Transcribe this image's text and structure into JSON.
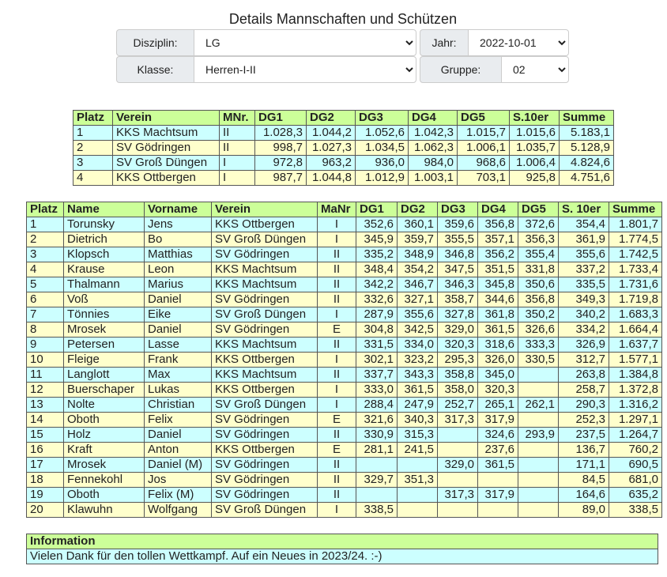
{
  "header": {
    "title": "Details Mannschaften und Schützen"
  },
  "filters": {
    "disziplin": {
      "label": "Disziplin:",
      "value": "LG"
    },
    "jahr": {
      "label": "Jahr:",
      "value": "2022-10-01"
    },
    "klasse": {
      "label": "Klasse:",
      "value": "Herren-I-II"
    },
    "gruppe": {
      "label": "Gruppe:",
      "value": "02"
    }
  },
  "team_table": {
    "columns": [
      "Platz",
      "Verein",
      "MNr.",
      "DG1",
      "DG2",
      "DG3",
      "DG4",
      "DG5",
      "S.10er",
      "Summe"
    ],
    "rows": [
      [
        1,
        "KKS Machtsum",
        "II",
        "1.028,3",
        "1.044,2",
        "1.052,6",
        "1.042,3",
        "1.015,7",
        "1.015,6",
        "5.183,1"
      ],
      [
        2,
        "SV Gödringen",
        "II",
        "998,7",
        "1.027,3",
        "1.034,5",
        "1.062,3",
        "1.006,1",
        "1.035,7",
        "5.128,9"
      ],
      [
        3,
        "SV Groß Düngen",
        "I",
        "972,8",
        "963,2",
        "936,0",
        "984,0",
        "968,6",
        "1.006,4",
        "4.824,6"
      ],
      [
        4,
        "KKS Ottbergen",
        "I",
        "987,7",
        "1.044,8",
        "1.012,9",
        "1.003,1",
        "703,1",
        "925,8",
        "4.751,6"
      ]
    ]
  },
  "shooter_table": {
    "columns": [
      "Platz",
      "Name",
      "Vorname",
      "Verein",
      "MaNr",
      "DG1",
      "DG2",
      "DG3",
      "DG4",
      "DG5",
      "S. 10er",
      "Summe"
    ],
    "rows": [
      [
        1,
        "Torunsky",
        "Jens",
        "KKS Ottbergen",
        "I",
        "352,6",
        "360,1",
        "359,6",
        "356,8",
        "372,6",
        "354,4",
        "1.801,7"
      ],
      [
        2,
        "Dietrich",
        "Bo",
        "SV Groß Düngen",
        "I",
        "345,9",
        "359,7",
        "355,5",
        "357,1",
        "356,3",
        "361,9",
        "1.774,5"
      ],
      [
        3,
        "Klopsch",
        "Matthias",
        "SV Gödringen",
        "II",
        "335,2",
        "348,9",
        "346,8",
        "356,2",
        "355,4",
        "355,6",
        "1.742,5"
      ],
      [
        4,
        "Krause",
        "Leon",
        "KKS Machtsum",
        "II",
        "348,4",
        "354,2",
        "347,5",
        "351,5",
        "331,8",
        "337,2",
        "1.733,4"
      ],
      [
        5,
        "Thalmann",
        "Marius",
        "KKS Machtsum",
        "II",
        "342,2",
        "346,7",
        "346,3",
        "345,8",
        "350,6",
        "335,5",
        "1.731,6"
      ],
      [
        6,
        "Voß",
        "Daniel",
        "SV Gödringen",
        "II",
        "332,6",
        "327,1",
        "358,7",
        "344,6",
        "356,8",
        "349,3",
        "1.719,8"
      ],
      [
        7,
        "Tönnies",
        "Eike",
        "SV Groß Düngen",
        "I",
        "287,9",
        "355,6",
        "327,8",
        "361,8",
        "350,2",
        "340,2",
        "1.683,3"
      ],
      [
        8,
        "Mrosek",
        "Daniel",
        "SV Gödringen",
        "E",
        "304,8",
        "342,5",
        "329,0",
        "361,5",
        "326,6",
        "334,2",
        "1.664,4"
      ],
      [
        9,
        "Petersen",
        "Lasse",
        "KKS Machtsum",
        "II",
        "331,5",
        "334,0",
        "320,3",
        "318,6",
        "333,3",
        "326,9",
        "1.637,7"
      ],
      [
        10,
        "Fleige",
        "Frank",
        "KKS Ottbergen",
        "I",
        "302,1",
        "323,2",
        "295,3",
        "326,0",
        "330,5",
        "312,7",
        "1.577,1"
      ],
      [
        11,
        "Langlott",
        "Max",
        "KKS Machtsum",
        "II",
        "337,7",
        "343,3",
        "358,8",
        "345,0",
        null,
        "263,8",
        "1.384,8"
      ],
      [
        12,
        "Buerschaper",
        "Lukas",
        "KKS Ottbergen",
        "I",
        "333,0",
        "361,5",
        "358,0",
        "320,3",
        null,
        "258,7",
        "1.372,8"
      ],
      [
        13,
        "Nolte",
        "Christian",
        "SV Groß Düngen",
        "I",
        "288,4",
        "247,9",
        "252,7",
        "265,1",
        "262,1",
        "290,3",
        "1.316,2"
      ],
      [
        14,
        "Oboth",
        "Felix",
        "SV Gödringen",
        "E",
        "321,6",
        "340,3",
        "317,3",
        "317,9",
        null,
        "252,3",
        "1.297,1"
      ],
      [
        15,
        "Holz",
        "Daniel",
        "SV Gödringen",
        "II",
        "330,9",
        "315,3",
        null,
        "324,6",
        "293,9",
        "237,5",
        "1.264,7"
      ],
      [
        16,
        "Kraft",
        "Anton",
        "KKS Ottbergen",
        "E",
        "281,1",
        "241,5",
        null,
        "237,6",
        null,
        "136,7",
        "760,2"
      ],
      [
        17,
        "Mrosek",
        "Daniel (M)",
        "SV Gödringen",
        "II",
        null,
        null,
        "329,0",
        "361,5",
        null,
        "171,1",
        "690,5"
      ],
      [
        18,
        "Fennekohl",
        "Jos",
        "SV Gödringen",
        "II",
        "329,7",
        "351,3",
        null,
        null,
        null,
        "84,5",
        "681,0"
      ],
      [
        19,
        "Oboth",
        "Felix (M)",
        "SV Gödringen",
        "II",
        null,
        null,
        "317,3",
        "317,9",
        null,
        "164,6",
        "635,2"
      ],
      [
        20,
        "Klawuhn",
        "Wolfgang",
        "SV Groß Düngen",
        "I",
        "338,5",
        null,
        null,
        null,
        null,
        "89,0",
        "338,5"
      ]
    ]
  },
  "information": {
    "title": "Information",
    "text": "Vielen Dank für den tollen Wettkampf. Auf ein Neues in 2023/24. :-)"
  }
}
